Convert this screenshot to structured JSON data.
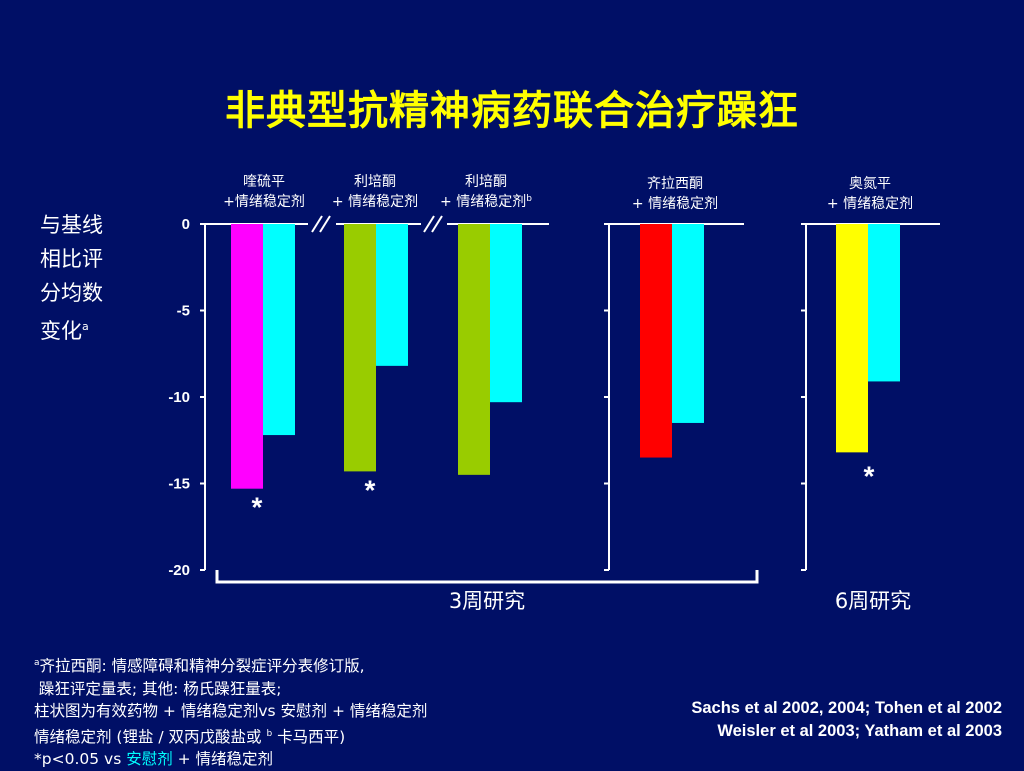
{
  "title": "非典型抗精神病药联合治疗躁狂",
  "y_label": {
    "text": "与基线相比评分均数变化",
    "superscript": "a"
  },
  "colors": {
    "background": "#000f66",
    "title": "#ffff00",
    "magenta": "#ff00ff",
    "green": "#99cc00",
    "red": "#ff0000",
    "yellow": "#ffff00",
    "cyan": "#00ffff"
  },
  "chart_data": {
    "type": "bar",
    "title": "非典型抗精神病药联合治疗躁狂",
    "ylabel": "与基线相比评分均数变化",
    "ylim": [
      -20,
      0
    ],
    "yticks": [
      0,
      -5,
      -10,
      -15,
      -20
    ],
    "groups": [
      {
        "label_line1": "喹硫平",
        "label_line2": "+情绪稳定剂",
        "label_sup": "",
        "study": "3周研究",
        "bars": [
          {
            "series": "active",
            "value": -15.3,
            "color": "#ff00ff",
            "significant": true
          },
          {
            "series": "placebo",
            "value": -12.2,
            "color": "#00ffff",
            "significant": false
          }
        ]
      },
      {
        "label_line1": "利培酮",
        "label_line2": "+ 情绪稳定剂",
        "label_sup": "",
        "study": "3周研究",
        "bars": [
          {
            "series": "active",
            "value": -14.3,
            "color": "#99cc00",
            "significant": true
          },
          {
            "series": "placebo",
            "value": -8.2,
            "color": "#00ffff",
            "significant": false
          }
        ]
      },
      {
        "label_line1": "利培酮",
        "label_line2": "+ 情绪稳定剂",
        "label_sup": "b",
        "study": "3周研究",
        "bars": [
          {
            "series": "active",
            "value": -14.5,
            "color": "#99cc00",
            "significant": false
          },
          {
            "series": "placebo",
            "value": -10.3,
            "color": "#00ffff",
            "significant": false
          }
        ]
      },
      {
        "label_line1": "齐拉西酮",
        "label_line2": "+ 情绪稳定剂",
        "label_sup": "",
        "study": "3周研究",
        "bars": [
          {
            "series": "active",
            "value": -13.5,
            "color": "#ff0000",
            "significant": false
          },
          {
            "series": "placebo",
            "value": -11.5,
            "color": "#00ffff",
            "significant": false
          }
        ]
      },
      {
        "label_line1": "奥氮平",
        "label_line2": "+ 情绪稳定剂",
        "label_sup": "",
        "study": "6周研究",
        "bars": [
          {
            "series": "active",
            "value": -13.2,
            "color": "#ffff00",
            "significant": true
          },
          {
            "series": "placebo",
            "value": -9.1,
            "color": "#00ffff",
            "significant": false
          }
        ]
      }
    ],
    "significance_marker": "*",
    "study_labels": [
      "3周研究",
      "6周研究"
    ]
  },
  "footnotes": {
    "line1_sup": "a",
    "line1": "齐拉西酮: 情感障碍和精神分裂症评分表修订版,",
    "line2": " 躁狂评定量表; 其他: 杨氏躁狂量表;",
    "line3": "柱状图为有效药物 + 情绪稳定剂vs 安慰剂 + 情绪稳定剂",
    "line4_pre": "情绪稳定剂 (锂盐 / 双丙戊酸盐或 ",
    "line4_sup": "b",
    "line4_post": " 卡马西平)",
    "line5_pre": "*p<0.05 vs ",
    "line5_placebo": "安慰剂",
    "line5_post": " + 情绪稳定剂"
  },
  "references": {
    "line1": "Sachs et al 2002, 2004; Tohen et al 2002",
    "line2": "Weisler et al 2003; Yatham et al 2003"
  }
}
